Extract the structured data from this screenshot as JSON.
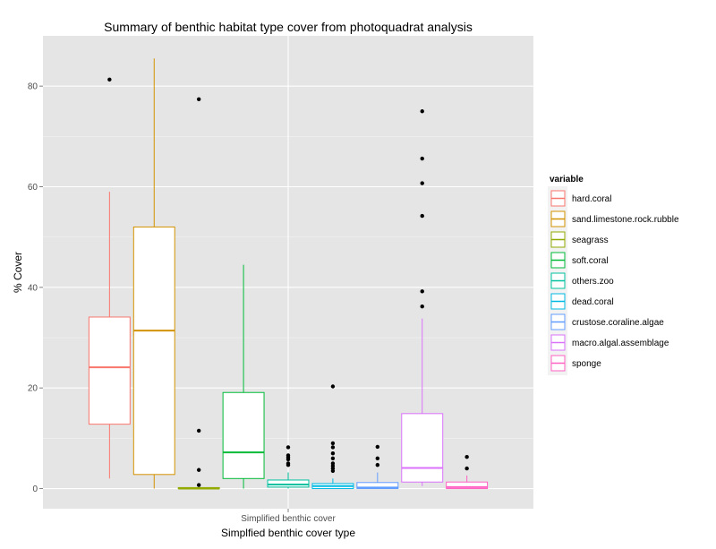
{
  "chart_data": {
    "type": "box",
    "title": "Summary of benthic habitat type cover from photoquadrat analysis",
    "xlabel": "Simplfied benthic cover type",
    "ylabel": "% Cover",
    "categories": [
      "Simplified benthic cover"
    ],
    "ylim": [
      -4,
      90
    ],
    "yticks": [
      0,
      20,
      40,
      60,
      80
    ],
    "grid": true,
    "legend": {
      "title": "variable",
      "position": "right"
    },
    "series": [
      {
        "name": "hard.coral",
        "color": "#F8766D",
        "min": 2.0,
        "q1": 12.8,
        "median": 24.1,
        "q3": 34.1,
        "max": 59.0,
        "outliers": [
          81.3
        ]
      },
      {
        "name": "sand.limestone.rock.rubble",
        "color": "#D39200",
        "min": 0.0,
        "q1": 2.8,
        "median": 31.4,
        "q3": 52.0,
        "max": 85.5,
        "outliers": []
      },
      {
        "name": "seagrass",
        "color": "#93AA00",
        "min": 0.0,
        "q1": 0.0,
        "median": 0.0,
        "q3": 0.2,
        "max": 0.3,
        "outliers": [
          0.7,
          3.7,
          11.5,
          77.4
        ]
      },
      {
        "name": "soft.coral",
        "color": "#00BA38",
        "min": 0.0,
        "q1": 2.0,
        "median": 7.2,
        "q3": 19.1,
        "max": 44.5,
        "outliers": []
      },
      {
        "name": "others.zoo",
        "color": "#00C19F",
        "min": 0.0,
        "q1": 0.3,
        "median": 0.8,
        "q3": 1.7,
        "max": 3.2,
        "outliers": [
          4.7,
          5.0,
          5.8,
          6.2,
          6.6,
          8.2
        ]
      },
      {
        "name": "dead.coral",
        "color": "#00B9E3",
        "min": 0.0,
        "q1": 0.0,
        "median": 0.5,
        "q3": 1.0,
        "max": 2.0,
        "outliers": [
          3.5,
          4.0,
          4.5,
          5.0,
          6.0,
          7.0,
          8.2,
          9.0,
          20.3
        ]
      },
      {
        "name": "crustose.coraline.algae",
        "color": "#619CFF",
        "min": 0.0,
        "q1": 0.0,
        "median": 0.2,
        "q3": 1.2,
        "max": 3.2,
        "outliers": [
          4.7,
          6.0,
          8.3
        ]
      },
      {
        "name": "macro.algal.assemblage",
        "color": "#DB72FB",
        "min": 0.5,
        "q1": 1.3,
        "median": 4.1,
        "q3": 14.9,
        "max": 33.8,
        "outliers": [
          36.2,
          39.2,
          54.2,
          60.7,
          65.6,
          75.0
        ]
      },
      {
        "name": "sponge",
        "color": "#FF61C3",
        "min": 0.0,
        "q1": 0.0,
        "median": 0.3,
        "q3": 1.3,
        "max": 2.6,
        "outliers": [
          4.0,
          6.3
        ]
      }
    ]
  }
}
